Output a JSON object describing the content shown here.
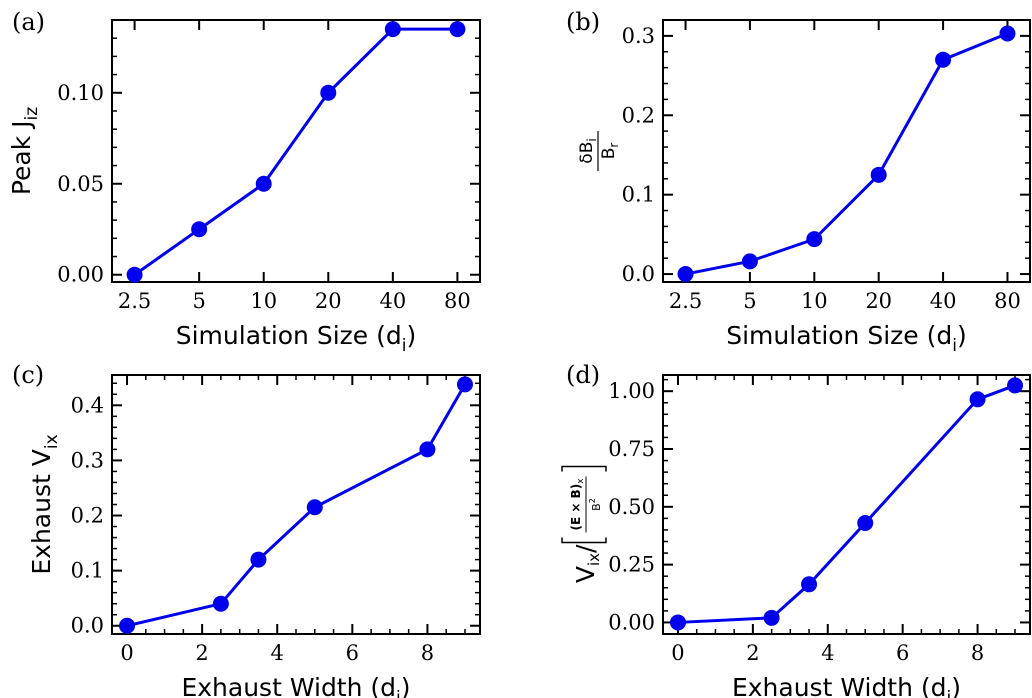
{
  "colors": {
    "series": "#0000ee",
    "axis": "#000000"
  },
  "chart_data": [
    {
      "type": "line",
      "panel_label": "(a)",
      "xscale": "category",
      "categories": [
        "2.5",
        "5",
        "10",
        "20",
        "40",
        "80"
      ],
      "values": [
        0.0,
        0.025,
        0.05,
        0.1,
        0.135,
        0.135
      ],
      "xlabel": {
        "main": "Simulation Size (d",
        "sub": "i",
        "close": ")"
      },
      "ylabel": {
        "main": "Peak J",
        "sub": "iz"
      },
      "ylim": [
        -0.004,
        0.14
      ],
      "yticks": [
        0.0,
        0.05,
        0.1
      ],
      "ytick_labels": [
        "0.00",
        "0.05",
        "0.10"
      ]
    },
    {
      "type": "line",
      "panel_label": "(b)",
      "xscale": "category",
      "categories": [
        "2.5",
        "5",
        "10",
        "20",
        "40",
        "80"
      ],
      "values": [
        0.0,
        0.016,
        0.044,
        0.125,
        0.27,
        0.303
      ],
      "xlabel": {
        "main": "Simulation Size (d",
        "sub": "i",
        "close": ")"
      },
      "ylabel": {
        "numerator": "δB",
        "numerator_sub": "i",
        "denominator": "B",
        "denominator_sub": "r"
      },
      "ylim": [
        -0.01,
        0.32
      ],
      "yticks": [
        0.0,
        0.1,
        0.2,
        0.3
      ],
      "ytick_labels": [
        "0.0",
        "0.1",
        "0.2",
        "0.3"
      ]
    },
    {
      "type": "line",
      "panel_label": "(c)",
      "xscale": "linear",
      "x": [
        0,
        2.5,
        3.5,
        5,
        8,
        9
      ],
      "values": [
        0.0,
        0.04,
        0.12,
        0.215,
        0.32,
        0.438
      ],
      "xlabel": {
        "main": "Exhaust Width (d",
        "sub": "i",
        "close": ")"
      },
      "ylabel": {
        "main": "Exhaust V",
        "sub": "ix"
      },
      "xlim": [
        -0.4,
        9.4
      ],
      "xticks": [
        0,
        2,
        4,
        6,
        8
      ],
      "xtick_labels": [
        "0",
        "2",
        "4",
        "6",
        "8"
      ],
      "ylim": [
        -0.015,
        0.455
      ],
      "yticks": [
        0.0,
        0.1,
        0.2,
        0.3,
        0.4
      ],
      "ytick_labels": [
        "0.0",
        "0.1",
        "0.2",
        "0.3",
        "0.4"
      ]
    },
    {
      "type": "line",
      "panel_label": "(d)",
      "xscale": "linear",
      "x": [
        0,
        2.5,
        3.5,
        5,
        8,
        9
      ],
      "values": [
        0.0,
        0.02,
        0.165,
        0.43,
        0.965,
        1.025
      ],
      "xlabel": {
        "main": "Exhaust Width (d",
        "sub": "i",
        "close": ")"
      },
      "ylabel": {
        "main": "V",
        "sub": "ix",
        "slash": "/",
        "numerator": "(E × B)",
        "numerator_sub": "x",
        "denominator": "B",
        "denominator_sup": "2"
      },
      "xlim": [
        -0.4,
        9.4
      ],
      "xticks": [
        0,
        2,
        4,
        6,
        8
      ],
      "xtick_labels": [
        "0",
        "2",
        "4",
        "6",
        "8"
      ],
      "ylim": [
        -0.05,
        1.07
      ],
      "yticks": [
        0.0,
        0.25,
        0.5,
        0.75,
        1.0
      ],
      "ytick_labels": [
        "0.00",
        "0.25",
        "0.50",
        "0.75",
        "1.00"
      ]
    }
  ]
}
